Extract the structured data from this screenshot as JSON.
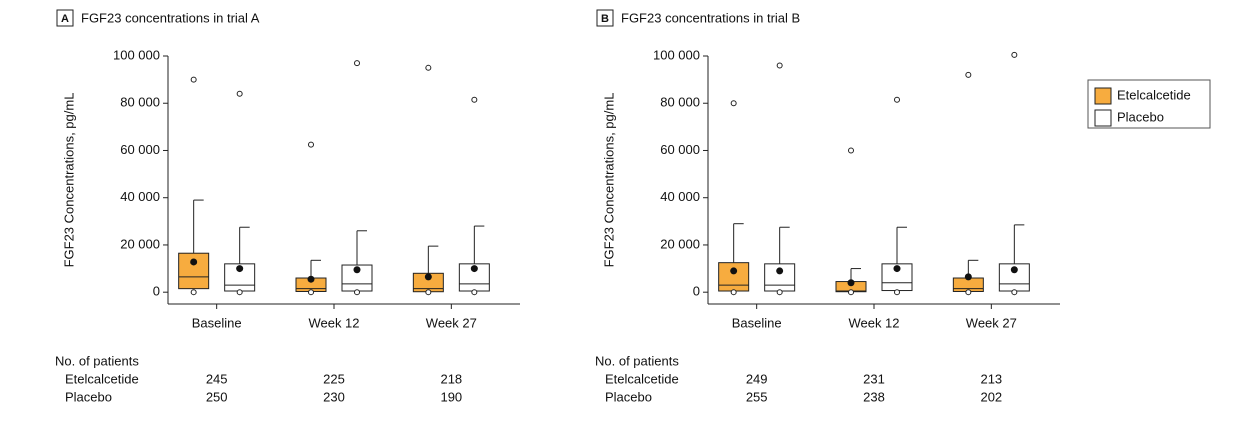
{
  "chart_data": [
    {
      "type": "box",
      "panel": "A",
      "title": "FGF23 concentrations in trial A",
      "y_label": "FGF23 Concentrations, pg/mL",
      "categories": [
        "Baseline",
        "Week 12",
        "Week 27"
      ],
      "ylim": [
        -5000,
        100000
      ],
      "yticks": [
        0,
        {
          "value": 20000,
          "label": "20 000"
        },
        {
          "value": 40000,
          "label": "40 000"
        },
        {
          "value": 60000,
          "label": "60 000"
        },
        {
          "value": 80000,
          "label": "80 000"
        },
        {
          "value": 100000,
          "label": "100 000"
        }
      ],
      "patients_label": "No. of patients",
      "series": [
        {
          "name": "Etelcalcetide",
          "color": "#f7ac3f",
          "n": [
            245,
            225,
            218
          ],
          "boxes": [
            {
              "q1": 1500,
              "median": 6500,
              "q3": 16500,
              "whishi": 39000,
              "mean": 12800,
              "fliers": [
                0,
                90000
              ]
            },
            {
              "q1": 300,
              "median": 1500,
              "q3": 6000,
              "whishi": 13500,
              "mean": 5500,
              "fliers": [
                0,
                62500
              ]
            },
            {
              "q1": 200,
              "median": 1500,
              "q3": 8000,
              "whishi": 19500,
              "mean": 6500,
              "fliers": [
                0,
                95000
              ]
            }
          ]
        },
        {
          "name": "Placebo",
          "color": "#ffffff",
          "n": [
            250,
            230,
            190
          ],
          "boxes": [
            {
              "q1": 500,
              "median": 3000,
              "q3": 12000,
              "whishi": 27500,
              "mean": 10000,
              "fliers": [
                0,
                84000
              ]
            },
            {
              "q1": 500,
              "median": 3500,
              "q3": 11500,
              "whishi": 26000,
              "mean": 9500,
              "fliers": [
                0,
                97000
              ]
            },
            {
              "q1": 500,
              "median": 3500,
              "q3": 12000,
              "whishi": 28000,
              "mean": 10000,
              "fliers": [
                0,
                81500
              ]
            }
          ]
        }
      ]
    },
    {
      "type": "box",
      "panel": "B",
      "title": "FGF23 concentrations in trial B",
      "y_label": "FGF23 Concentrations, pg/mL",
      "categories": [
        "Baseline",
        "Week 12",
        "Week 27"
      ],
      "ylim": [
        -5000,
        100000
      ],
      "yticks": [
        0,
        {
          "value": 20000,
          "label": "20 000"
        },
        {
          "value": 40000,
          "label": "40 000"
        },
        {
          "value": 60000,
          "label": "60 000"
        },
        {
          "value": 80000,
          "label": "80 000"
        },
        {
          "value": 100000,
          "label": "100 000"
        }
      ],
      "patients_label": "No. of patients",
      "series": [
        {
          "name": "Etelcalcetide",
          "color": "#f7ac3f",
          "n": [
            249,
            231,
            213
          ],
          "boxes": [
            {
              "q1": 500,
              "median": 3000,
              "q3": 12500,
              "whishi": 29000,
              "mean": 9000,
              "fliers": [
                0,
                80000
              ]
            },
            {
              "q1": 200,
              "median": 500,
              "q3": 4500,
              "whishi": 10000,
              "mean": 4000,
              "fliers": [
                0,
                60000
              ]
            },
            {
              "q1": 300,
              "median": 1500,
              "q3": 6000,
              "whishi": 13500,
              "mean": 6500,
              "fliers": [
                0,
                92000
              ]
            }
          ]
        },
        {
          "name": "Placebo",
          "color": "#ffffff",
          "n": [
            255,
            238,
            202
          ],
          "boxes": [
            {
              "q1": 500,
              "median": 3000,
              "q3": 12000,
              "whishi": 27500,
              "mean": 9000,
              "fliers": [
                0,
                96000
              ]
            },
            {
              "q1": 700,
              "median": 4000,
              "q3": 12000,
              "whishi": 27500,
              "mean": 10000,
              "fliers": [
                0,
                81500
              ]
            },
            {
              "q1": 500,
              "median": 3500,
              "q3": 12000,
              "whishi": 28500,
              "mean": 9500,
              "fliers": [
                0,
                100500
              ]
            }
          ]
        }
      ]
    }
  ]
}
